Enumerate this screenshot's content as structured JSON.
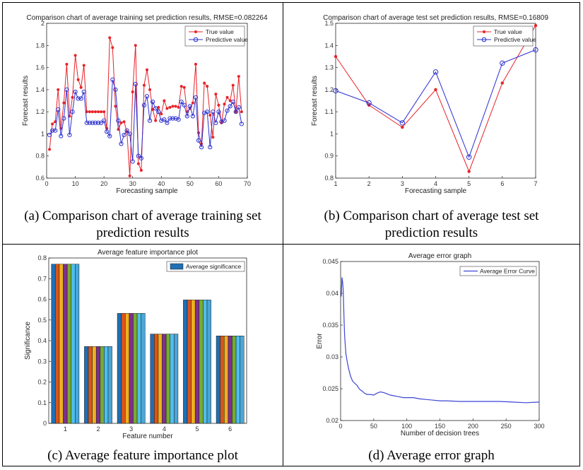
{
  "panels": {
    "a": {
      "caption_line1": "(a) Comparison chart of average training set",
      "caption_line2": "prediction results"
    },
    "b": {
      "caption_line1": "(b) Comparison chart of average test set",
      "caption_line2": "prediction results"
    },
    "c": {
      "caption": "(c) Average feature importance plot"
    },
    "d": {
      "caption": "(d) Average error graph"
    }
  },
  "colors": {
    "true": "#e8232a",
    "pred": "#2b2fcf",
    "bar_blue": "#1f6fb5",
    "err": "#3b45d6"
  },
  "chart_data": [
    {
      "type": "line",
      "title": "Comparison chart of average training set prediction results, RMSE=0.082264",
      "xlabel": "Forecasting sample",
      "ylabel": "Forecast results",
      "xlim": [
        0,
        70
      ],
      "ylim": [
        0.6,
        2.0
      ],
      "xticks": [
        "0",
        "10",
        "20",
        "30",
        "40",
        "50",
        "60",
        "70"
      ],
      "yticks": [
        "0.6",
        "0.8",
        "1",
        "1.2",
        "1.4",
        "1.6",
        "1.8",
        "2"
      ],
      "legend": [
        "True value",
        "Predictive value"
      ],
      "legend_position": "top-right",
      "x": [
        1,
        2,
        3,
        4,
        5,
        6,
        7,
        8,
        9,
        10,
        11,
        12,
        13,
        14,
        15,
        16,
        17,
        18,
        19,
        20,
        21,
        22,
        23,
        24,
        25,
        26,
        27,
        28,
        29,
        30,
        31,
        32,
        33,
        34,
        35,
        36,
        37,
        38,
        39,
        40,
        41,
        42,
        43,
        44,
        45,
        46,
        47,
        48,
        49,
        50,
        51,
        52,
        53,
        54,
        55,
        56,
        57,
        58,
        59,
        60,
        61,
        62,
        63,
        64,
        65,
        66,
        67,
        68
      ],
      "series": [
        {
          "name": "True value",
          "values": [
            0.86,
            1.09,
            1.11,
            1.4,
            1.05,
            1.28,
            1.63,
            1.16,
            1.33,
            1.71,
            1.49,
            1.42,
            1.62,
            1.2,
            1.2,
            1.2,
            1.2,
            1.2,
            1.2,
            1.2,
            1.05,
            1.87,
            1.78,
            1.25,
            1.04,
            1.1,
            1.11,
            1.02,
            0.62,
            1.38,
            1.8,
            0.73,
            0.67,
            1.44,
            1.58,
            1.4,
            1.22,
            1.12,
            1.24,
            1.18,
            1.3,
            1.23,
            1.24,
            1.25,
            1.25,
            1.24,
            1.43,
            1.42,
            1.2,
            1.23,
            1.28,
            1.63,
            1.01,
            0.91,
            1.46,
            1.43,
            1.17,
            0.97,
            1.36,
            1.26,
            1.1,
            1.27,
            1.33,
            1.3,
            1.44,
            1.2,
            1.52,
            1.2
          ]
        },
        {
          "name": "Predictive value",
          "values": [
            0.99,
            1.03,
            1.03,
            1.22,
            0.98,
            1.14,
            1.4,
            0.99,
            1.2,
            1.38,
            1.32,
            1.32,
            1.38,
            1.1,
            1.1,
            1.1,
            1.1,
            1.1,
            1.1,
            1.12,
            1.02,
            0.98,
            1.49,
            1.4,
            1.12,
            0.91,
            0.99,
            1.03,
            1.0,
            0.75,
            1.45,
            0.8,
            0.78,
            1.26,
            1.34,
            1.12,
            1.29,
            1.23,
            1.2,
            1.12,
            1.13,
            1.1,
            1.14,
            1.14,
            1.14,
            1.13,
            1.29,
            1.26,
            1.16,
            1.25,
            1.16,
            1.33,
            0.94,
            0.88,
            1.19,
            1.2,
            0.88,
            1.2,
            1.1,
            1.2,
            1.11,
            1.12,
            1.21,
            1.25,
            1.29,
            1.2,
            1.24,
            1.09
          ]
        }
      ]
    },
    {
      "type": "line",
      "title": "Comparison chart of average test set prediction results, RMSE=0.16809",
      "xlabel": "Forecasting sample",
      "ylabel": "Forecast results",
      "xlim": [
        1,
        7
      ],
      "ylim": [
        0.8,
        1.5
      ],
      "xticks": [
        "1",
        "2",
        "3",
        "4",
        "5",
        "6",
        "7"
      ],
      "yticks": [
        "0.8",
        "0.9",
        "1",
        "1.1",
        "1.2",
        "1.3",
        "1.4",
        "1.5"
      ],
      "legend": [
        "True value",
        "Predictive value"
      ],
      "legend_position": "top-right",
      "x": [
        1,
        2,
        3,
        4,
        5,
        6,
        7
      ],
      "series": [
        {
          "name": "True value",
          "values": [
            1.35,
            1.13,
            1.03,
            1.2,
            0.83,
            1.23,
            1.49
          ]
        },
        {
          "name": "Predictive value",
          "values": [
            1.195,
            1.14,
            1.05,
            1.28,
            0.895,
            1.32,
            1.38
          ]
        }
      ]
    },
    {
      "type": "bar",
      "title": "Average feature importance plot",
      "xlabel": "Feature number",
      "ylabel": "Significance",
      "ylim": [
        0,
        0.8
      ],
      "categories": [
        "1",
        "2",
        "3",
        "4",
        "5",
        "6"
      ],
      "yticks": [
        "0",
        "0.1",
        "0.2",
        "0.3",
        "0.4",
        "0.5",
        "0.6",
        "0.7",
        "0.8"
      ],
      "values": [
        0.77,
        0.372,
        0.532,
        0.432,
        0.597,
        0.423
      ],
      "bars_per_group": 7,
      "bar_colors": [
        "#1f6fb5",
        "#d9541a",
        "#edb120",
        "#7e2f8e",
        "#77ac30",
        "#4dbeee",
        "#4aa6d8"
      ],
      "legend": [
        "Average significance"
      ],
      "legend_position": "top-right"
    },
    {
      "type": "line",
      "title": "Average error graph",
      "xlabel": "Number of decision trees",
      "ylabel": "Error",
      "xlim": [
        0,
        300
      ],
      "ylim": [
        0.02,
        0.045
      ],
      "xticks": [
        "0",
        "50",
        "100",
        "150",
        "200",
        "250",
        "300"
      ],
      "yticks": [
        "0.02",
        "0.025",
        "0.03",
        "0.035",
        "0.04",
        "0.045"
      ],
      "legend": [
        "Average Error Curve"
      ],
      "legend_position": "top-right",
      "series": [
        {
          "name": "Average Error Curve",
          "x": [
            1,
            2,
            3,
            4,
            5,
            6,
            7,
            8,
            10,
            12,
            15,
            18,
            20,
            22,
            25,
            28,
            30,
            33,
            36,
            40,
            45,
            50,
            55,
            60,
            65,
            70,
            75,
            80,
            85,
            90,
            95,
            100,
            110,
            120,
            130,
            140,
            150,
            160,
            180,
            200,
            220,
            240,
            260,
            280,
            300
          ],
          "values": [
            0.0395,
            0.0425,
            0.0418,
            0.0405,
            0.0365,
            0.0335,
            0.0318,
            0.0305,
            0.0292,
            0.0282,
            0.027,
            0.0262,
            0.026,
            0.0258,
            0.0255,
            0.025,
            0.0248,
            0.0246,
            0.0243,
            0.0241,
            0.0241,
            0.024,
            0.0243,
            0.0245,
            0.0244,
            0.0242,
            0.024,
            0.0239,
            0.0238,
            0.0237,
            0.0236,
            0.0236,
            0.0236,
            0.0234,
            0.0233,
            0.0232,
            0.0231,
            0.0231,
            0.023,
            0.023,
            0.023,
            0.023,
            0.0229,
            0.0228,
            0.0229
          ]
        }
      ]
    }
  ]
}
